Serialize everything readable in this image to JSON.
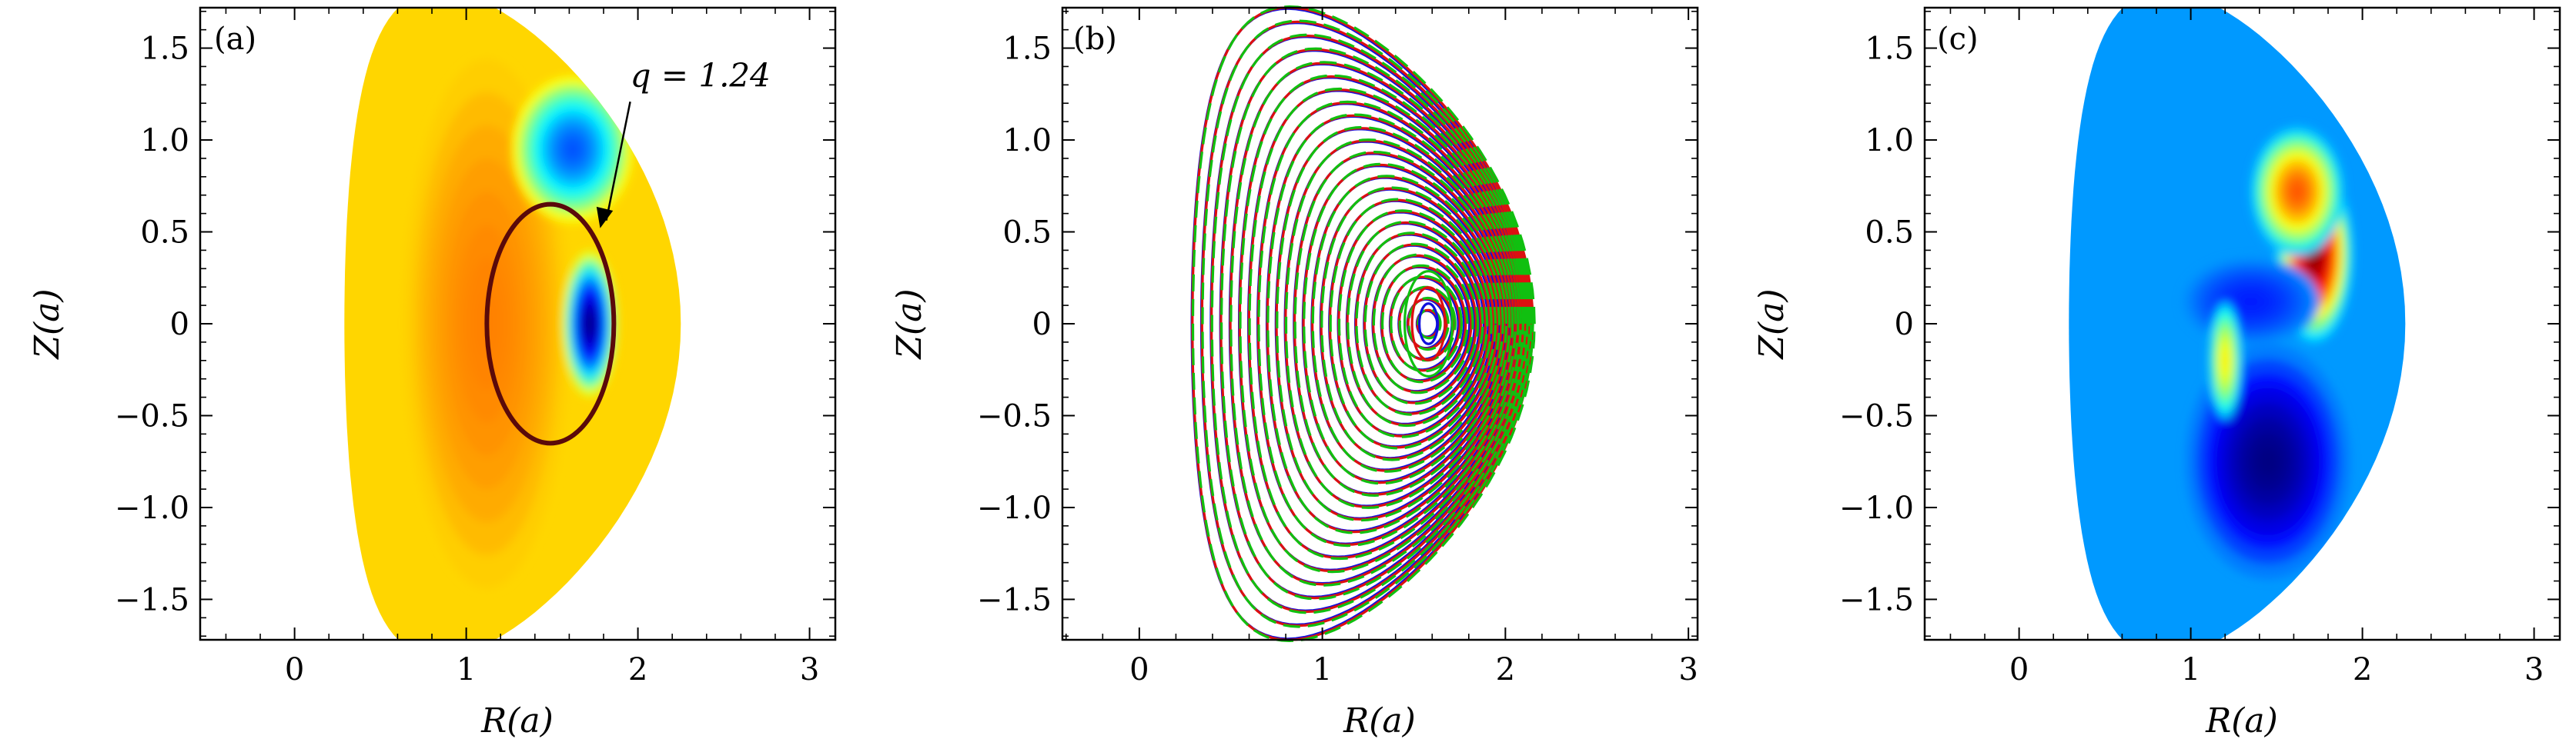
{
  "chart_data": [
    {
      "type": "heatmap",
      "panel_label": "(a)",
      "xlabel": "R(a)",
      "ylabel": "Z(a)",
      "xlim": [
        -0.55,
        3.15
      ],
      "ylim": [
        -1.72,
        1.72
      ],
      "xticks": [
        0,
        1,
        2,
        3
      ],
      "yticks": [
        -1.5,
        -1.0,
        -0.5,
        0,
        0.5,
        1.0,
        1.5
      ],
      "xtick_labels": [
        "0",
        "1",
        "2",
        "3"
      ],
      "ytick_labels": [
        "−1.5",
        "−1.0",
        "−0.5",
        "0",
        "0.5",
        "1.0",
        "1.5"
      ],
      "colormap": "jet",
      "features": [
        {
          "kind": "blob",
          "r": 1.33,
          "z": 0.0,
          "sr": 0.13,
          "sz": 0.24,
          "value": 1.0
        },
        {
          "kind": "blob",
          "r": 1.12,
          "z": 0.0,
          "sr": 0.3,
          "sz": 0.9,
          "value": 0.5
        },
        {
          "kind": "blob",
          "r": 1.72,
          "z": 0.0,
          "sr": 0.1,
          "sz": 0.25,
          "value": -1.0
        },
        {
          "kind": "blob",
          "r": 1.62,
          "z": 0.95,
          "sr": 0.22,
          "sz": 0.25,
          "value": -0.6
        }
      ],
      "contour": {
        "label": "q = 1.24",
        "r0": 1.49,
        "z0": 0.0,
        "semi_r": 0.37,
        "semi_z": 0.65,
        "color": "#5a0a0a"
      },
      "annotation": {
        "text": "q = 1.24",
        "r_text": 2.0,
        "z_text": 1.25,
        "arrow_r": 1.78,
        "arrow_z": 0.52
      }
    },
    {
      "type": "scatter",
      "panel_label": "(b)",
      "xlabel": "R(a)",
      "ylabel": "Z(a)",
      "xlim": [
        -0.42,
        3.05
      ],
      "ylim": [
        -1.72,
        1.72
      ],
      "xticks": [
        0,
        1,
        2,
        3
      ],
      "yticks": [
        -1.5,
        -1.0,
        -0.5,
        0,
        0.5,
        1.0,
        1.5
      ],
      "xtick_labels": [
        "0",
        "1",
        "2",
        "3"
      ],
      "ytick_labels": [
        "−1.5",
        "−1.0",
        "−0.5",
        "0",
        "0.5",
        "1.0",
        "1.5"
      ],
      "description_series": [
        "blue",
        "red",
        "green"
      ],
      "series_colors": [
        "#1010dd",
        "#dd1010",
        "#10c010"
      ],
      "magnetic_axis": {
        "r": 1.58,
        "z": 0.0
      },
      "n_surfaces": 26
    },
    {
      "type": "heatmap",
      "panel_label": "(c)",
      "xlabel": "R(a)",
      "ylabel": "Z(a)",
      "xlim": [
        -0.55,
        3.15
      ],
      "ylim": [
        -1.72,
        1.72
      ],
      "xticks": [
        0,
        1,
        2,
        3
      ],
      "yticks": [
        -1.5,
        -1.0,
        -0.5,
        0,
        0.5,
        1.0,
        1.5
      ],
      "xtick_labels": [
        "0",
        "1",
        "2",
        "3"
      ],
      "ytick_labels": [
        "−1.5",
        "−1.0",
        "−0.5",
        "0",
        "0.5",
        "1.0",
        "1.5"
      ],
      "colormap": "jet",
      "features": [
        {
          "kind": "blob",
          "r": 1.72,
          "z": 0.38,
          "sr": 0.14,
          "sz": 0.3,
          "value": 1.0
        },
        {
          "kind": "blob",
          "r": 1.62,
          "z": 0.72,
          "sr": 0.17,
          "sz": 0.22,
          "value": 0.6
        },
        {
          "kind": "blob",
          "r": 1.45,
          "z": -0.75,
          "sr": 0.3,
          "sz": 0.4,
          "value": -1.0
        },
        {
          "kind": "blob",
          "r": 1.35,
          "z": 0.12,
          "sr": 0.25,
          "sz": 0.15,
          "value": -0.7
        },
        {
          "kind": "blob",
          "r": 1.2,
          "z": -0.2,
          "sr": 0.06,
          "sz": 0.2,
          "value": 0.3
        }
      ]
    }
  ]
}
